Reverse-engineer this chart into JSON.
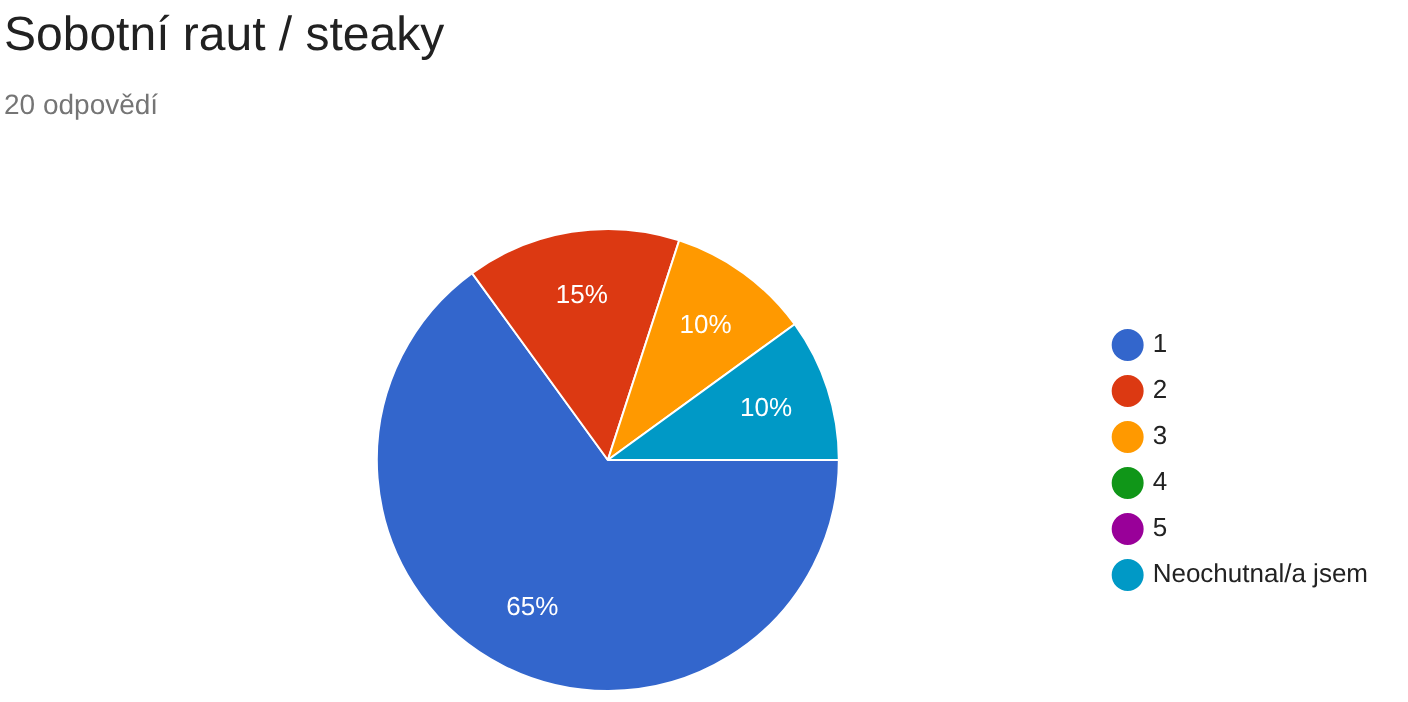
{
  "chart_data": {
    "type": "pie",
    "title": "Sobotní raut / steaky",
    "subtitle": "20 odpovědí",
    "categories": [
      "1",
      "2",
      "3",
      "4",
      "5",
      "Neochutnal/a jsem"
    ],
    "values": [
      65,
      15,
      10,
      0,
      0,
      10
    ],
    "value_labels": [
      "65%",
      "15%",
      "10%",
      null,
      null,
      "10%"
    ],
    "colors": [
      "#3366cc",
      "#dc3912",
      "#ff9900",
      "#109618",
      "#990099",
      "#0099c6"
    ],
    "legend": "right"
  }
}
